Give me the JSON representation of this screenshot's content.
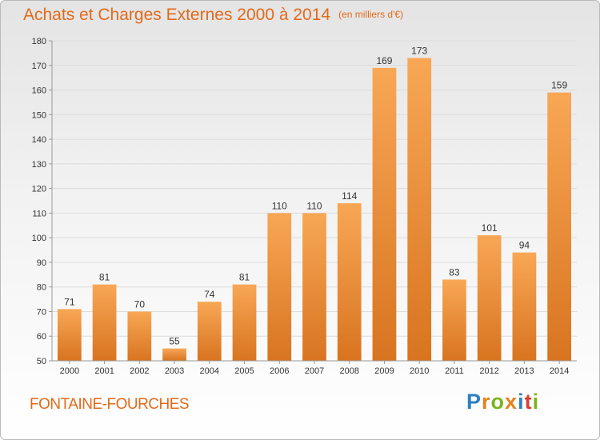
{
  "header": {
    "title": "Achats et Charges Externes 2000 à 2014",
    "subtitle": "(en milliers d'€)"
  },
  "footer": {
    "place": "FONTAINE-FOURCHES",
    "logo": [
      "P",
      "r",
      "o",
      "x",
      "i",
      "t",
      "i"
    ],
    "logo_colors": [
      "#2f7fc1",
      "#e8811c",
      "#7ab51d",
      "#e8811c",
      "#2f7fc1",
      "#d93e2c",
      "#7ab51d"
    ]
  },
  "colors": {
    "bar_light": "#f8a755",
    "bar_dark": "#d87420",
    "axis": "#999999"
  },
  "chart_data": {
    "type": "bar",
    "categories": [
      "2000",
      "2001",
      "2002",
      "2003",
      "2004",
      "2005",
      "2006",
      "2007",
      "2008",
      "2009",
      "2010",
      "2011",
      "2012",
      "2013",
      "2014"
    ],
    "values": [
      71,
      81,
      70,
      55,
      74,
      81,
      110,
      110,
      114,
      169,
      173,
      83,
      101,
      94,
      159
    ],
    "ylim": [
      50,
      180
    ],
    "yticks": [
      50,
      60,
      70,
      80,
      90,
      100,
      110,
      120,
      130,
      140,
      150,
      160,
      170,
      180
    ],
    "grid": true,
    "data_labels": true
  }
}
